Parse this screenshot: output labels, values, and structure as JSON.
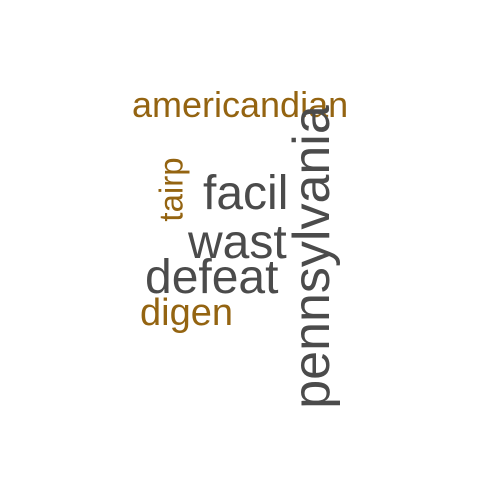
{
  "colors": {
    "gold": "#946411",
    "gray": "#4b4b4b",
    "background": "#ffffff"
  },
  "words": [
    {
      "key": "americandian",
      "text": "americandian",
      "color": "gold",
      "rotated": false
    },
    {
      "key": "tairp",
      "text": "tairp",
      "color": "gold",
      "rotated": true
    },
    {
      "key": "facil",
      "text": "facil",
      "color": "gray",
      "rotated": false
    },
    {
      "key": "wast",
      "text": "wast",
      "color": "gray",
      "rotated": false
    },
    {
      "key": "defeat",
      "text": "defeat",
      "color": "gray",
      "rotated": false
    },
    {
      "key": "digen",
      "text": "digen",
      "color": "gold",
      "rotated": false
    },
    {
      "key": "pennsylvania",
      "text": "pennsylvania",
      "color": "gray",
      "rotated": true
    }
  ]
}
